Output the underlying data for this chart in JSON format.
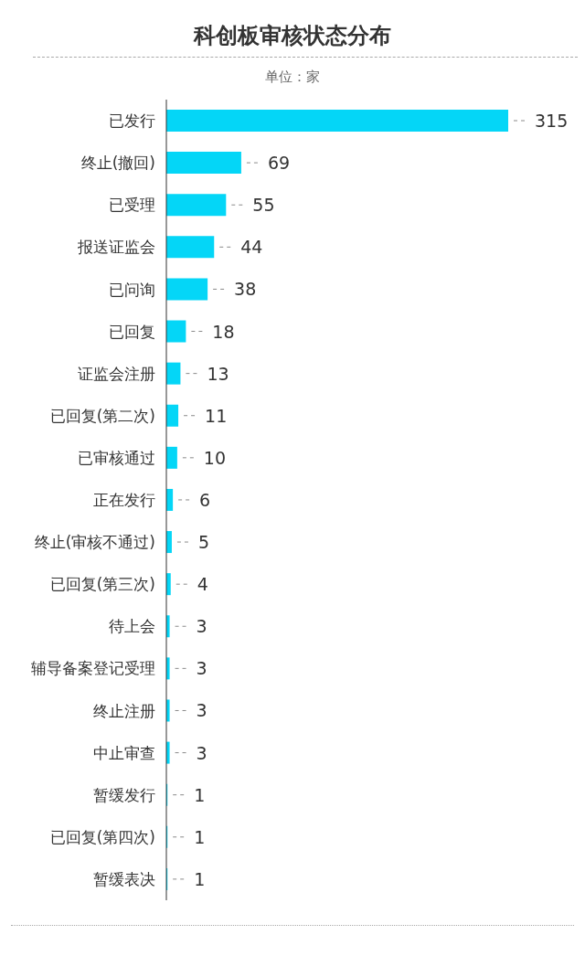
{
  "chart_data": {
    "type": "bar",
    "orientation": "horizontal",
    "title": "科创板审核状态分布",
    "subtitle": "单位：家",
    "categories": [
      "已发行",
      "终止(撤回)",
      "已受理",
      "报送证监会",
      "已问询",
      "已回复",
      "证监会注册",
      "已回复(第二次)",
      "已审核通过",
      "正在发行",
      "终止(审核不通过)",
      "已回复(第三次)",
      "待上会",
      "辅导备案登记受理",
      "终止注册",
      "中止审查",
      "暂缓发行",
      "已回复(第四次)",
      "暂缓表决"
    ],
    "values": [
      315,
      69,
      55,
      44,
      38,
      18,
      13,
      11,
      10,
      6,
      5,
      4,
      3,
      3,
      3,
      3,
      1,
      1,
      1
    ],
    "color": "#04d6f7",
    "data_labels": true
  }
}
